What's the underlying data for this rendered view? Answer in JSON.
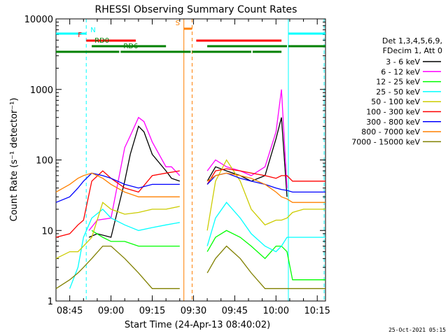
{
  "chart_data": {
    "type": "line",
    "title": "RHESSI Observing Summary Count Rates",
    "xlabel": "Start Time (24-Apr-13 08:40:02)",
    "ylabel": "Count Rate (s⁻¹ detector⁻¹)",
    "yscale": "log",
    "ylim": [
      1,
      10000
    ],
    "xlim_minutes": [
      0,
      98
    ],
    "x_ticks": [
      "08:45",
      "09:00",
      "09:15",
      "09:30",
      "09:45",
      "10:00",
      "10:15"
    ],
    "y_ticks": [
      "1",
      "10",
      "100",
      "1000",
      "10000"
    ],
    "grid": false,
    "legend_placement": "right",
    "legend_header": [
      "Det 1,3,4,5,6,9,",
      "FDecim 1, Att 0"
    ],
    "timestamp": "25-Oct-2021 05:15",
    "series": [
      {
        "name": "3 - 6 keV",
        "color": "#000000",
        "t": [
          4,
          8,
          12,
          15,
          20,
          25,
          27,
          30,
          32,
          35,
          40,
          42,
          45,
          48,
          51,
          55,
          58,
          62,
          67,
          71,
          76,
          80,
          82,
          84,
          86
        ],
        "y": [
          null,
          null,
          8,
          9,
          8,
          50,
          120,
          300,
          250,
          120,
          70,
          55,
          50,
          null,
          null,
          50,
          80,
          70,
          60,
          50,
          60,
          200,
          400,
          30,
          null
        ]
      },
      {
        "name": "6 - 12 keV",
        "color": "#ff00ff",
        "t": [
          4,
          8,
          12,
          15,
          20,
          25,
          27,
          30,
          32,
          35,
          40,
          42,
          45,
          48,
          51,
          55,
          58,
          62,
          67,
          71,
          76,
          80,
          82,
          84,
          86
        ],
        "y": [
          null,
          null,
          10,
          14,
          15,
          150,
          220,
          400,
          350,
          180,
          80,
          80,
          60,
          null,
          null,
          70,
          100,
          80,
          70,
          60,
          80,
          250,
          1000,
          40,
          null
        ]
      },
      {
        "name": "12 - 25 keV",
        "color": "#00ff00",
        "t": [
          0,
          5,
          8,
          10,
          13,
          17,
          20,
          25,
          30,
          35,
          40,
          45,
          48,
          51,
          55,
          58,
          62,
          67,
          71,
          76,
          80,
          82,
          84,
          86,
          90,
          94,
          98
        ],
        "y": [
          null,
          null,
          null,
          null,
          10,
          8,
          7,
          7,
          6,
          6,
          6,
          6,
          null,
          null,
          5,
          8,
          10,
          8,
          6,
          4,
          6,
          6,
          5,
          2,
          2,
          2,
          2
        ]
      },
      {
        "name": "25 - 50 keV",
        "color": "#00ffff",
        "t": [
          0,
          5,
          8,
          10,
          13,
          17,
          20,
          25,
          30,
          35,
          40,
          45,
          48,
          51,
          55,
          58,
          62,
          67,
          71,
          76,
          80,
          82,
          84,
          86,
          90,
          94,
          98
        ],
        "y": [
          null,
          1.5,
          3,
          8,
          15,
          20,
          15,
          12,
          10,
          11,
          12,
          13,
          null,
          null,
          6,
          15,
          25,
          15,
          9,
          6,
          5,
          6,
          8,
          8,
          8,
          8,
          8
        ]
      },
      {
        "name": "50 - 100 keV",
        "color": "#cccc00",
        "t": [
          0,
          5,
          8,
          10,
          13,
          17,
          20,
          25,
          30,
          35,
          40,
          45,
          48,
          51,
          55,
          58,
          62,
          67,
          71,
          76,
          80,
          82,
          84,
          86,
          90,
          94,
          98
        ],
        "y": [
          4,
          5,
          5,
          6,
          8,
          25,
          20,
          17,
          18,
          20,
          20,
          22,
          null,
          null,
          10,
          50,
          100,
          50,
          20,
          12,
          14,
          14,
          15,
          18,
          20,
          20,
          20
        ]
      },
      {
        "name": "100 - 300 keV",
        "color": "#ff0000",
        "t": [
          0,
          5,
          8,
          10,
          13,
          17,
          20,
          25,
          30,
          35,
          40,
          45,
          48,
          51,
          55,
          58,
          62,
          67,
          71,
          76,
          80,
          82,
          84,
          86,
          90,
          94,
          98
        ],
        "y": [
          8,
          9,
          12,
          14,
          50,
          70,
          55,
          40,
          35,
          60,
          65,
          70,
          null,
          null,
          45,
          70,
          75,
          70,
          65,
          60,
          55,
          60,
          60,
          50,
          50,
          50,
          50
        ]
      },
      {
        "name": "300 - 800 keV",
        "color": "#0000ff",
        "t": [
          0,
          5,
          8,
          10,
          13,
          17,
          20,
          25,
          30,
          35,
          40,
          45,
          48,
          51,
          55,
          58,
          62,
          67,
          71,
          76,
          80,
          82,
          84,
          86,
          90,
          94,
          98
        ],
        "y": [
          25,
          30,
          40,
          50,
          65,
          60,
          55,
          45,
          40,
          45,
          45,
          45,
          null,
          null,
          45,
          60,
          65,
          55,
          50,
          45,
          40,
          38,
          37,
          35,
          35,
          35,
          35
        ]
      },
      {
        "name": "800 - 7000 keV",
        "color": "#ff8000",
        "t": [
          0,
          5,
          8,
          10,
          13,
          17,
          20,
          25,
          30,
          35,
          40,
          45,
          48,
          51,
          55,
          58,
          62,
          67,
          71,
          76,
          80,
          82,
          84,
          86,
          90,
          94,
          98
        ],
        "y": [
          35,
          45,
          55,
          60,
          65,
          55,
          45,
          35,
          30,
          30,
          30,
          30,
          null,
          null,
          50,
          60,
          65,
          60,
          55,
          45,
          35,
          30,
          28,
          25,
          25,
          25,
          25
        ]
      },
      {
        "name": "7000 - 15000 keV",
        "color": "#808000",
        "t": [
          0,
          5,
          8,
          10,
          13,
          17,
          20,
          25,
          30,
          35,
          40,
          45,
          48,
          51,
          55,
          58,
          62,
          67,
          71,
          76,
          80,
          82,
          84,
          86,
          90,
          94,
          98
        ],
        "y": [
          1.5,
          2,
          2.5,
          3,
          4,
          6,
          6,
          4,
          2.5,
          1.5,
          1.5,
          1.5,
          null,
          null,
          2.5,
          4,
          6,
          4,
          2.5,
          1.5,
          1.5,
          1.5,
          1.5,
          1.5,
          1.5,
          1.5,
          1.5
        ]
      }
    ],
    "flag_bars": [
      {
        "label": "N",
        "color": "#00ffff",
        "segments": [
          [
            0,
            11
          ],
          [
            84.5,
            98
          ]
        ]
      },
      {
        "label": "F",
        "color": "#ff0000",
        "segments": [
          [
            11,
            29
          ],
          [
            51,
            82
          ]
        ]
      },
      {
        "label": "S",
        "color": "#ff8000",
        "segments": [
          [
            46.5,
            49.5
          ]
        ]
      },
      {
        "label": "RD0",
        "color": "#008000",
        "segments": [
          [
            13,
            40
          ],
          [
            55,
            84
          ],
          [
            84.5,
            98
          ]
        ]
      },
      {
        "label": "RD6",
        "color": "#008000",
        "segments": [
          [
            0,
            23
          ],
          [
            23.5,
            49
          ],
          [
            49.5,
            71
          ],
          [
            71.5,
            82
          ]
        ]
      }
    ],
    "vlines": [
      {
        "t": 0,
        "color": "#00ffff",
        "style": "dashed"
      },
      {
        "t": 11,
        "color": "#00ffff",
        "style": "dashed"
      },
      {
        "t": 46.5,
        "color": "#ff8000",
        "style": "solid"
      },
      {
        "t": 49.5,
        "color": "#ff8000",
        "style": "dashed"
      },
      {
        "t": 84.5,
        "color": "#00ffff",
        "style": "solid"
      },
      {
        "t": 97.5,
        "color": "#00ffff",
        "style": "dashed"
      }
    ]
  }
}
